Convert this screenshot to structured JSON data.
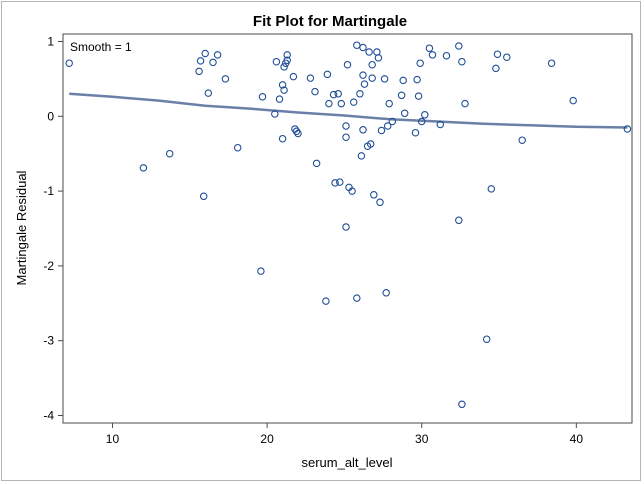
{
  "chart_data": {
    "type": "scatter",
    "title": "Fit Plot for Martingale",
    "xlabel": "serum_alt_level",
    "ylabel": "Martingale Residual",
    "annotation": "Smooth = 1",
    "xlim": [
      6.8,
      43.6
    ],
    "ylim": [
      -4.1,
      1.1
    ],
    "xticks": [
      10,
      20,
      30,
      40
    ],
    "yticks": [
      1,
      0,
      -1,
      -2,
      -3,
      -4
    ],
    "grid": false,
    "legend": "none",
    "marker_color": "#1f4e96",
    "line_color": "#6b80a6",
    "points": [
      {
        "x": 7.2,
        "y": 0.71
      },
      {
        "x": 12.0,
        "y": -0.69
      },
      {
        "x": 13.7,
        "y": -0.5
      },
      {
        "x": 15.6,
        "y": 0.6
      },
      {
        "x": 15.7,
        "y": 0.74
      },
      {
        "x": 15.9,
        "y": -1.07
      },
      {
        "x": 16.0,
        "y": 0.84
      },
      {
        "x": 16.2,
        "y": 0.31
      },
      {
        "x": 16.5,
        "y": 0.72
      },
      {
        "x": 16.8,
        "y": 0.82
      },
      {
        "x": 17.3,
        "y": 0.5
      },
      {
        "x": 18.1,
        "y": -0.42
      },
      {
        "x": 19.6,
        "y": -2.07
      },
      {
        "x": 19.7,
        "y": 0.26
      },
      {
        "x": 20.5,
        "y": 0.03
      },
      {
        "x": 20.6,
        "y": 0.73
      },
      {
        "x": 20.8,
        "y": 0.23
      },
      {
        "x": 21.0,
        "y": 0.42
      },
      {
        "x": 21.0,
        "y": -0.3
      },
      {
        "x": 21.1,
        "y": 0.66
      },
      {
        "x": 21.1,
        "y": 0.35
      },
      {
        "x": 21.2,
        "y": 0.71
      },
      {
        "x": 21.3,
        "y": 0.75
      },
      {
        "x": 21.3,
        "y": 0.82
      },
      {
        "x": 21.7,
        "y": 0.53
      },
      {
        "x": 21.8,
        "y": -0.17
      },
      {
        "x": 21.9,
        "y": -0.2
      },
      {
        "x": 22.0,
        "y": -0.23
      },
      {
        "x": 22.8,
        "y": 0.51
      },
      {
        "x": 23.1,
        "y": 0.33
      },
      {
        "x": 23.2,
        "y": -0.63
      },
      {
        "x": 23.8,
        "y": -2.47
      },
      {
        "x": 23.9,
        "y": 0.56
      },
      {
        "x": 24.0,
        "y": 0.17
      },
      {
        "x": 24.3,
        "y": 0.29
      },
      {
        "x": 24.4,
        "y": -0.89
      },
      {
        "x": 24.6,
        "y": 0.3
      },
      {
        "x": 24.7,
        "y": -0.88
      },
      {
        "x": 24.8,
        "y": 0.17
      },
      {
        "x": 25.1,
        "y": -1.48
      },
      {
        "x": 25.1,
        "y": -0.28
      },
      {
        "x": 25.1,
        "y": -0.13
      },
      {
        "x": 25.2,
        "y": 0.69
      },
      {
        "x": 25.3,
        "y": -0.95
      },
      {
        "x": 25.5,
        "y": -1.0
      },
      {
        "x": 25.6,
        "y": 0.19
      },
      {
        "x": 25.8,
        "y": 0.95
      },
      {
        "x": 25.8,
        "y": -2.43
      },
      {
        "x": 26.0,
        "y": 0.3
      },
      {
        "x": 26.1,
        "y": -0.53
      },
      {
        "x": 26.2,
        "y": 0.92
      },
      {
        "x": 26.2,
        "y": -0.18
      },
      {
        "x": 26.2,
        "y": 0.55
      },
      {
        "x": 26.3,
        "y": 0.43
      },
      {
        "x": 26.5,
        "y": -0.4
      },
      {
        "x": 26.6,
        "y": 0.86
      },
      {
        "x": 26.7,
        "y": -0.37
      },
      {
        "x": 26.8,
        "y": 0.51
      },
      {
        "x": 26.8,
        "y": 0.69
      },
      {
        "x": 26.9,
        "y": -1.05
      },
      {
        "x": 27.1,
        "y": 0.86
      },
      {
        "x": 27.2,
        "y": 0.78
      },
      {
        "x": 27.3,
        "y": -1.15
      },
      {
        "x": 27.4,
        "y": -0.19
      },
      {
        "x": 27.6,
        "y": 0.5
      },
      {
        "x": 27.7,
        "y": -2.36
      },
      {
        "x": 27.8,
        "y": -0.13
      },
      {
        "x": 27.9,
        "y": 0.17
      },
      {
        "x": 28.1,
        "y": -0.07
      },
      {
        "x": 28.7,
        "y": 0.28
      },
      {
        "x": 28.8,
        "y": 0.48
      },
      {
        "x": 28.9,
        "y": 0.04
      },
      {
        "x": 29.6,
        "y": -0.22
      },
      {
        "x": 29.7,
        "y": 0.49
      },
      {
        "x": 29.8,
        "y": 0.27
      },
      {
        "x": 29.9,
        "y": 0.71
      },
      {
        "x": 30.0,
        "y": -0.07
      },
      {
        "x": 30.2,
        "y": 0.02
      },
      {
        "x": 30.5,
        "y": 0.91
      },
      {
        "x": 30.7,
        "y": 0.82
      },
      {
        "x": 31.2,
        "y": -0.11
      },
      {
        "x": 31.6,
        "y": 0.81
      },
      {
        "x": 32.4,
        "y": 0.94
      },
      {
        "x": 32.4,
        "y": -1.39
      },
      {
        "x": 32.6,
        "y": 0.73
      },
      {
        "x": 32.6,
        "y": -3.85
      },
      {
        "x": 32.8,
        "y": 0.17
      },
      {
        "x": 34.2,
        "y": -2.98
      },
      {
        "x": 34.5,
        "y": -0.97
      },
      {
        "x": 34.8,
        "y": 0.64
      },
      {
        "x": 34.9,
        "y": 0.83
      },
      {
        "x": 35.5,
        "y": 0.79
      },
      {
        "x": 36.5,
        "y": -0.32
      },
      {
        "x": 38.4,
        "y": 0.71
      },
      {
        "x": 39.8,
        "y": 0.21
      },
      {
        "x": 43.3,
        "y": -0.17
      }
    ],
    "smooth_line": [
      {
        "x": 7.2,
        "y": 0.3
      },
      {
        "x": 10,
        "y": 0.26
      },
      {
        "x": 13,
        "y": 0.21
      },
      {
        "x": 16,
        "y": 0.14
      },
      {
        "x": 19,
        "y": 0.1
      },
      {
        "x": 22,
        "y": 0.05
      },
      {
        "x": 25,
        "y": 0.01
      },
      {
        "x": 28,
        "y": -0.04
      },
      {
        "x": 31,
        "y": -0.07
      },
      {
        "x": 34,
        "y": -0.1
      },
      {
        "x": 37,
        "y": -0.12
      },
      {
        "x": 40,
        "y": -0.14
      },
      {
        "x": 43.3,
        "y": -0.15
      }
    ]
  }
}
